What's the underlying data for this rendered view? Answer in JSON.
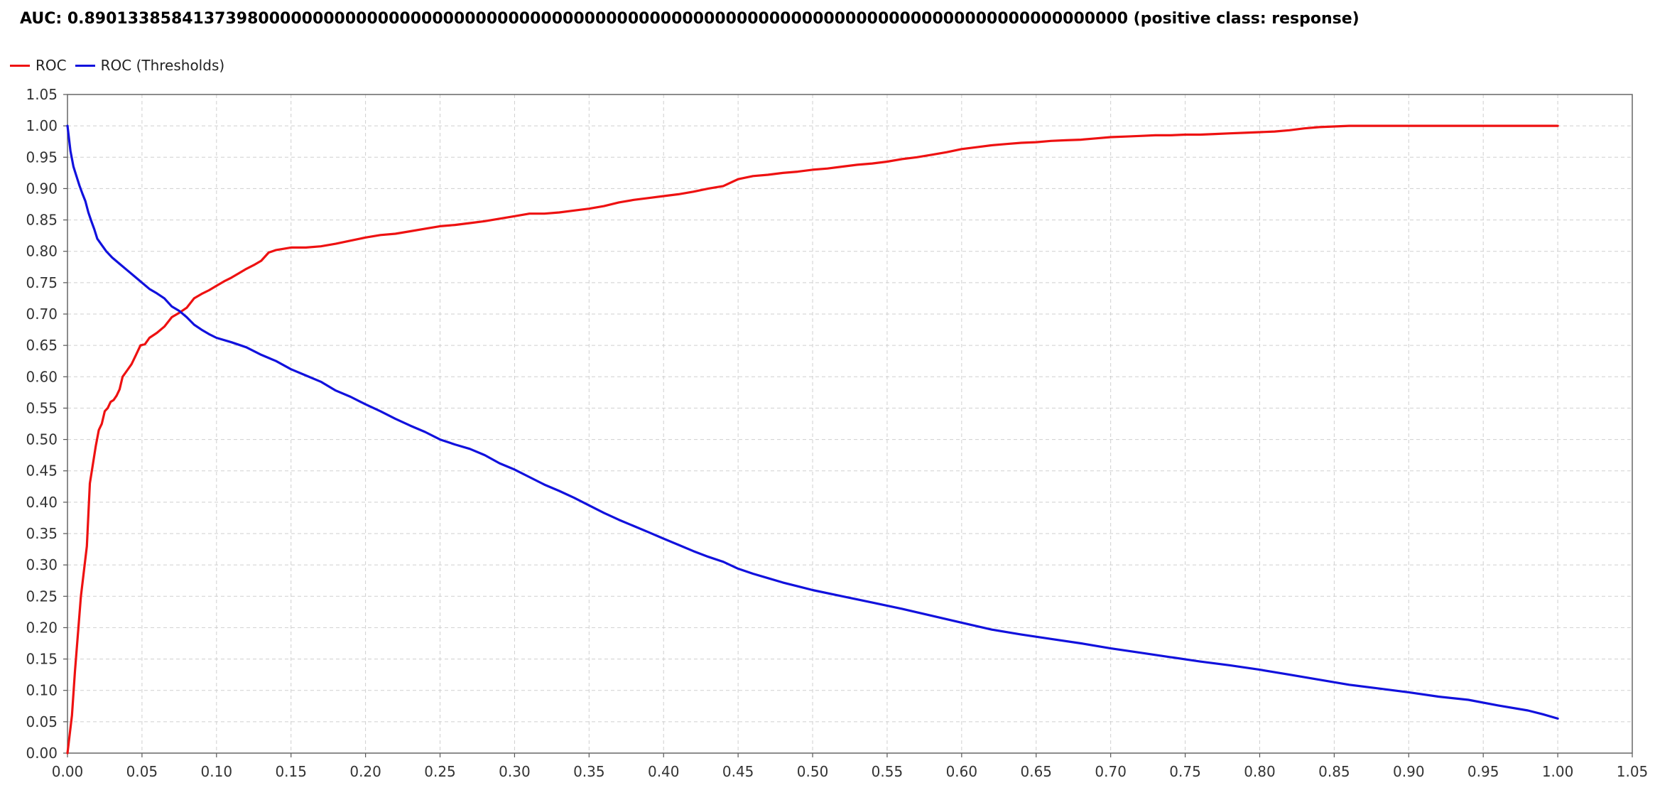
{
  "chart_data": {
    "type": "line",
    "title": "AUC: 0.890133858413739800000000000000000000000000000000000000000000000000000000000000000000000000000000 (positive class: response)",
    "xlabel": "",
    "ylabel": "",
    "xlim": [
      0,
      1.05
    ],
    "ylim": [
      0,
      1.05
    ],
    "grid": true,
    "legend_placement": "top-left",
    "x_ticks": [
      "0.00",
      "0.05",
      "0.10",
      "0.15",
      "0.20",
      "0.25",
      "0.30",
      "0.35",
      "0.40",
      "0.45",
      "0.50",
      "0.55",
      "0.60",
      "0.65",
      "0.70",
      "0.75",
      "0.80",
      "0.85",
      "0.90",
      "0.95",
      "1.00",
      "1.05"
    ],
    "y_ticks": [
      "0.00",
      "0.05",
      "0.10",
      "0.15",
      "0.20",
      "0.25",
      "0.30",
      "0.35",
      "0.40",
      "0.45",
      "0.50",
      "0.55",
      "0.60",
      "0.65",
      "0.70",
      "0.75",
      "0.80",
      "0.85",
      "0.90",
      "0.95",
      "1.00",
      "1.05"
    ],
    "series": [
      {
        "name": "ROC",
        "color": "#ee1111",
        "points": [
          [
            0.0,
            0.0
          ],
          [
            0.003,
            0.06
          ],
          [
            0.005,
            0.13
          ],
          [
            0.007,
            0.19
          ],
          [
            0.009,
            0.25
          ],
          [
            0.011,
            0.29
          ],
          [
            0.013,
            0.33
          ],
          [
            0.014,
            0.38
          ],
          [
            0.015,
            0.43
          ],
          [
            0.017,
            0.46
          ],
          [
            0.019,
            0.49
          ],
          [
            0.021,
            0.515
          ],
          [
            0.023,
            0.525
          ],
          [
            0.025,
            0.545
          ],
          [
            0.027,
            0.55
          ],
          [
            0.029,
            0.56
          ],
          [
            0.031,
            0.563
          ],
          [
            0.033,
            0.57
          ],
          [
            0.035,
            0.58
          ],
          [
            0.037,
            0.6
          ],
          [
            0.04,
            0.61
          ],
          [
            0.043,
            0.62
          ],
          [
            0.046,
            0.635
          ],
          [
            0.049,
            0.65
          ],
          [
            0.052,
            0.652
          ],
          [
            0.055,
            0.662
          ],
          [
            0.06,
            0.67
          ],
          [
            0.065,
            0.68
          ],
          [
            0.07,
            0.695
          ],
          [
            0.075,
            0.702
          ],
          [
            0.08,
            0.71
          ],
          [
            0.085,
            0.725
          ],
          [
            0.09,
            0.732
          ],
          [
            0.095,
            0.738
          ],
          [
            0.1,
            0.745
          ],
          [
            0.105,
            0.752
          ],
          [
            0.11,
            0.758
          ],
          [
            0.115,
            0.765
          ],
          [
            0.12,
            0.772
          ],
          [
            0.125,
            0.778
          ],
          [
            0.13,
            0.785
          ],
          [
            0.135,
            0.798
          ],
          [
            0.14,
            0.802
          ],
          [
            0.145,
            0.804
          ],
          [
            0.15,
            0.806
          ],
          [
            0.16,
            0.806
          ],
          [
            0.17,
            0.808
          ],
          [
            0.18,
            0.812
          ],
          [
            0.19,
            0.817
          ],
          [
            0.2,
            0.822
          ],
          [
            0.21,
            0.826
          ],
          [
            0.22,
            0.828
          ],
          [
            0.23,
            0.832
          ],
          [
            0.24,
            0.836
          ],
          [
            0.25,
            0.84
          ],
          [
            0.26,
            0.842
          ],
          [
            0.27,
            0.845
          ],
          [
            0.28,
            0.848
          ],
          [
            0.29,
            0.852
          ],
          [
            0.3,
            0.856
          ],
          [
            0.31,
            0.86
          ],
          [
            0.32,
            0.86
          ],
          [
            0.33,
            0.862
          ],
          [
            0.34,
            0.865
          ],
          [
            0.35,
            0.868
          ],
          [
            0.36,
            0.872
          ],
          [
            0.37,
            0.878
          ],
          [
            0.38,
            0.882
          ],
          [
            0.39,
            0.885
          ],
          [
            0.4,
            0.888
          ],
          [
            0.41,
            0.891
          ],
          [
            0.42,
            0.895
          ],
          [
            0.43,
            0.9
          ],
          [
            0.44,
            0.904
          ],
          [
            0.45,
            0.915
          ],
          [
            0.46,
            0.92
          ],
          [
            0.47,
            0.922
          ],
          [
            0.48,
            0.925
          ],
          [
            0.49,
            0.927
          ],
          [
            0.5,
            0.93
          ],
          [
            0.51,
            0.932
          ],
          [
            0.52,
            0.935
          ],
          [
            0.53,
            0.938
          ],
          [
            0.54,
            0.94
          ],
          [
            0.55,
            0.943
          ],
          [
            0.56,
            0.947
          ],
          [
            0.57,
            0.95
          ],
          [
            0.58,
            0.954
          ],
          [
            0.59,
            0.958
          ],
          [
            0.6,
            0.963
          ],
          [
            0.61,
            0.966
          ],
          [
            0.62,
            0.969
          ],
          [
            0.63,
            0.971
          ],
          [
            0.64,
            0.973
          ],
          [
            0.65,
            0.974
          ],
          [
            0.66,
            0.976
          ],
          [
            0.67,
            0.977
          ],
          [
            0.68,
            0.978
          ],
          [
            0.69,
            0.98
          ],
          [
            0.7,
            0.982
          ],
          [
            0.71,
            0.983
          ],
          [
            0.72,
            0.984
          ],
          [
            0.73,
            0.985
          ],
          [
            0.74,
            0.985
          ],
          [
            0.75,
            0.986
          ],
          [
            0.76,
            0.986
          ],
          [
            0.77,
            0.987
          ],
          [
            0.78,
            0.988
          ],
          [
            0.79,
            0.989
          ],
          [
            0.8,
            0.99
          ],
          [
            0.81,
            0.991
          ],
          [
            0.82,
            0.993
          ],
          [
            0.83,
            0.996
          ],
          [
            0.84,
            0.998
          ],
          [
            0.85,
            0.999
          ],
          [
            0.86,
            1.0
          ],
          [
            0.9,
            1.0
          ],
          [
            0.95,
            1.0
          ],
          [
            1.0,
            1.0
          ]
        ]
      },
      {
        "name": "ROC (Thresholds)",
        "color": "#1111dd",
        "points": [
          [
            0.0,
            1.0
          ],
          [
            0.002,
            0.96
          ],
          [
            0.004,
            0.935
          ],
          [
            0.006,
            0.92
          ],
          [
            0.008,
            0.905
          ],
          [
            0.01,
            0.892
          ],
          [
            0.012,
            0.88
          ],
          [
            0.014,
            0.862
          ],
          [
            0.016,
            0.848
          ],
          [
            0.018,
            0.835
          ],
          [
            0.02,
            0.82
          ],
          [
            0.023,
            0.81
          ],
          [
            0.026,
            0.8
          ],
          [
            0.03,
            0.79
          ],
          [
            0.035,
            0.78
          ],
          [
            0.04,
            0.77
          ],
          [
            0.045,
            0.76
          ],
          [
            0.05,
            0.75
          ],
          [
            0.055,
            0.74
          ],
          [
            0.06,
            0.733
          ],
          [
            0.065,
            0.725
          ],
          [
            0.07,
            0.712
          ],
          [
            0.075,
            0.705
          ],
          [
            0.08,
            0.695
          ],
          [
            0.085,
            0.683
          ],
          [
            0.09,
            0.675
          ],
          [
            0.095,
            0.668
          ],
          [
            0.1,
            0.662
          ],
          [
            0.11,
            0.655
          ],
          [
            0.12,
            0.647
          ],
          [
            0.13,
            0.635
          ],
          [
            0.14,
            0.625
          ],
          [
            0.15,
            0.612
          ],
          [
            0.16,
            0.602
          ],
          [
            0.17,
            0.592
          ],
          [
            0.18,
            0.578
          ],
          [
            0.19,
            0.568
          ],
          [
            0.2,
            0.556
          ],
          [
            0.21,
            0.545
          ],
          [
            0.22,
            0.533
          ],
          [
            0.23,
            0.522
          ],
          [
            0.24,
            0.512
          ],
          [
            0.25,
            0.5
          ],
          [
            0.26,
            0.492
          ],
          [
            0.27,
            0.485
          ],
          [
            0.28,
            0.475
          ],
          [
            0.29,
            0.462
          ],
          [
            0.3,
            0.452
          ],
          [
            0.31,
            0.44
          ],
          [
            0.32,
            0.428
          ],
          [
            0.33,
            0.418
          ],
          [
            0.34,
            0.407
          ],
          [
            0.35,
            0.395
          ],
          [
            0.36,
            0.383
          ],
          [
            0.37,
            0.372
          ],
          [
            0.38,
            0.362
          ],
          [
            0.39,
            0.352
          ],
          [
            0.4,
            0.342
          ],
          [
            0.41,
            0.332
          ],
          [
            0.42,
            0.322
          ],
          [
            0.43,
            0.313
          ],
          [
            0.44,
            0.305
          ],
          [
            0.45,
            0.294
          ],
          [
            0.46,
            0.286
          ],
          [
            0.47,
            0.279
          ],
          [
            0.48,
            0.272
          ],
          [
            0.49,
            0.266
          ],
          [
            0.5,
            0.26
          ],
          [
            0.52,
            0.25
          ],
          [
            0.54,
            0.24
          ],
          [
            0.56,
            0.23
          ],
          [
            0.58,
            0.219
          ],
          [
            0.6,
            0.208
          ],
          [
            0.62,
            0.197
          ],
          [
            0.64,
            0.189
          ],
          [
            0.66,
            0.182
          ],
          [
            0.68,
            0.175
          ],
          [
            0.7,
            0.167
          ],
          [
            0.72,
            0.16
          ],
          [
            0.74,
            0.153
          ],
          [
            0.76,
            0.146
          ],
          [
            0.78,
            0.14
          ],
          [
            0.8,
            0.133
          ],
          [
            0.82,
            0.125
          ],
          [
            0.84,
            0.117
          ],
          [
            0.86,
            0.109
          ],
          [
            0.88,
            0.103
          ],
          [
            0.9,
            0.097
          ],
          [
            0.92,
            0.09
          ],
          [
            0.94,
            0.085
          ],
          [
            0.96,
            0.076
          ],
          [
            0.98,
            0.068
          ],
          [
            0.99,
            0.062
          ],
          [
            1.0,
            0.055
          ]
        ]
      }
    ]
  }
}
